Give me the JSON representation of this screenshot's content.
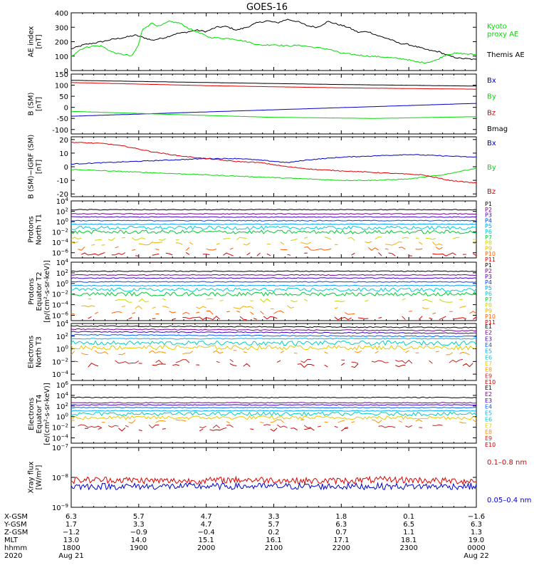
{
  "title": "GOES-16",
  "colors": {
    "black": "#000000",
    "red": "#e00000",
    "green": "#00dd00",
    "blue": "#0000cc",
    "P": [
      "#000000",
      "#7a0090",
      "#4000c0",
      "#0040ff",
      "#00a0ff",
      "#00d0d0",
      "#00cc33",
      "#c8d800",
      "#f0b000",
      "#ff6000",
      "#dd0000"
    ],
    "E": [
      "#000000",
      "#7a0090",
      "#4000c0",
      "#0060ff",
      "#00b0ff",
      "#00d0c0",
      "#e8c800",
      "#ff9000",
      "#cc2020",
      "#cc0000"
    ]
  },
  "chart_data": [
    {
      "id": "ae",
      "type": "line",
      "ylabel": [
        "AE index",
        "[nT]"
      ],
      "ylim": [
        0,
        400
      ],
      "yticks": [
        "400",
        "300",
        "200",
        "100",
        "0"
      ],
      "ytick_values": [
        400,
        300,
        200,
        100,
        0
      ],
      "series": [
        {
          "name": "Themis AE",
          "color": "#000000",
          "x": [
            0,
            0.2,
            0.4,
            0.6,
            0.8,
            0.95,
            1.1,
            1.2,
            1.4,
            1.55,
            1.7,
            1.85,
            2.0,
            2.15,
            2.3,
            2.45,
            2.6,
            2.75,
            2.9,
            3.05,
            3.2,
            3.35,
            3.5,
            3.65,
            3.8,
            3.95,
            4.1,
            4.25,
            4.4,
            4.55,
            4.7,
            4.85,
            5.0,
            5.15,
            5.3,
            5.45,
            5.6,
            5.75,
            5.9,
            6.0
          ],
          "values": [
            150,
            180,
            195,
            215,
            230,
            245,
            225,
            210,
            230,
            255,
            265,
            280,
            270,
            300,
            305,
            280,
            300,
            330,
            345,
            330,
            355,
            340,
            310,
            300,
            340,
            320,
            300,
            265,
            270,
            240,
            220,
            190,
            180,
            160,
            140,
            130,
            100,
            85,
            80,
            75
          ]
        },
        {
          "name": "Kyoto proxy AE",
          "color": "#00dd00",
          "x": [
            0,
            0.15,
            0.3,
            0.45,
            0.6,
            0.7,
            0.8,
            0.9,
            1.0,
            1.05,
            1.1,
            1.2,
            1.3,
            1.45,
            1.6,
            1.75,
            1.9,
            2.05,
            2.2,
            2.4,
            2.6,
            2.8,
            3.0,
            3.2,
            3.4,
            3.6,
            3.8,
            4.0,
            4.2,
            4.4,
            4.6,
            4.8,
            4.95,
            5.1,
            5.25,
            5.4,
            5.55,
            5.7,
            5.85,
            6.0
          ],
          "values": [
            100,
            150,
            170,
            170,
            130,
            115,
            110,
            100,
            180,
            280,
            300,
            330,
            305,
            340,
            330,
            290,
            260,
            230,
            225,
            220,
            200,
            175,
            180,
            170,
            175,
            160,
            150,
            120,
            110,
            100,
            95,
            85,
            80,
            60,
            55,
            70,
            110,
            120,
            115,
            110
          ]
        }
      ],
      "legend": [
        {
          "text": "Kyoto",
          "color": "#00dd00"
        },
        {
          "text": "proxy AE",
          "color": "#00dd00"
        },
        {
          "text": "Themis AE",
          "color": "#000000"
        }
      ]
    },
    {
      "id": "bsm",
      "type": "line",
      "ylabel": [
        "B (SM)",
        "[nT]"
      ],
      "ylim": [
        -120,
        150
      ],
      "yticks": [
        "150",
        "100",
        "50",
        "0",
        "-50",
        "-100"
      ],
      "ytick_values": [
        150,
        100,
        50,
        0,
        -50,
        -100
      ],
      "series": [
        {
          "name": "Bx",
          "color": "#0000cc",
          "x": [
            0,
            6
          ],
          "values": [
            -40,
            18
          ]
        },
        {
          "name": "By",
          "color": "#00dd00",
          "x": [
            0,
            1.5,
            3,
            4.5,
            6
          ],
          "values": [
            -18,
            -32,
            -45,
            -50,
            -42
          ]
        },
        {
          "name": "Bz",
          "color": "#e00000",
          "x": [
            0,
            2,
            4,
            6
          ],
          "values": [
            112,
            98,
            88,
            82
          ]
        },
        {
          "name": "Bmag",
          "color": "#000000",
          "x": [
            0,
            2,
            4,
            6
          ],
          "values": [
            122,
            112,
            103,
            96
          ]
        }
      ],
      "legend": [
        {
          "text": "Bx",
          "color": "#0000cc"
        },
        {
          "text": "By",
          "color": "#00dd00"
        },
        {
          "text": "Bz",
          "color": "#e00000"
        },
        {
          "text": "Bmag",
          "color": "#000000"
        }
      ]
    },
    {
      "id": "bigrf",
      "type": "line",
      "ylabel": [
        "B (SM)−IGRF (SM)",
        "[nT]"
      ],
      "ylim": [
        -22,
        22
      ],
      "yticks": [
        "20",
        "10",
        "0",
        "-10",
        "-20"
      ],
      "ytick_values": [
        20,
        10,
        0,
        -10,
        -20
      ],
      "series": [
        {
          "name": "Bx",
          "color": "#0000cc",
          "x": [
            0,
            0.5,
            1.0,
            1.5,
            2.0,
            2.5,
            3.0,
            3.2,
            3.5,
            4.0,
            4.5,
            5.0,
            5.5,
            6.0
          ],
          "values": [
            2,
            3,
            4,
            5,
            6,
            6,
            4,
            3,
            5,
            7,
            8,
            9,
            8,
            7
          ]
        },
        {
          "name": "By",
          "color": "#00dd00",
          "x": [
            0,
            0.5,
            1.0,
            1.5,
            2.0,
            2.5,
            3.0,
            3.5,
            4.0,
            4.5,
            5.0,
            5.5,
            6.0
          ],
          "values": [
            -2,
            -3,
            -4,
            -5,
            -6,
            -7,
            -8,
            -9,
            -10,
            -10,
            -9,
            -6,
            -1
          ]
        },
        {
          "name": "Bz",
          "color": "#e00000",
          "x": [
            0,
            0.5,
            0.8,
            1.2,
            1.6,
            2.0,
            2.4,
            2.8,
            3.2,
            3.6,
            4.0,
            4.4,
            4.8,
            5.2,
            5.6,
            6.0
          ],
          "values": [
            18,
            17,
            15,
            11,
            8,
            6,
            4,
            3,
            0,
            -2,
            -3,
            -4,
            -5,
            -6,
            -10,
            -12
          ]
        }
      ],
      "legend": [
        {
          "text": "Bx",
          "color": "#0000cc"
        },
        {
          "text": "By",
          "color": "#00dd00"
        },
        {
          "text": "Bz",
          "color": "#e00000"
        }
      ]
    },
    {
      "id": "pnorth",
      "type": "line",
      "log": true,
      "ylabel": [
        "Protons",
        "North T1"
      ],
      "ylim_exp": [
        -7,
        4
      ],
      "ytick_exps": [
        4,
        2,
        0,
        -2,
        -4,
        -6
      ],
      "series_levels": [
        2.3,
        1.5,
        0.9,
        0.2,
        -0.5,
        -1.2,
        -2.0,
        -3.3,
        -4.2,
        -5.2,
        -6.3
      ],
      "legend": [
        "P1",
        "P2",
        "P3",
        "P4",
        "P5",
        "P6",
        "P7",
        "P8",
        "P9",
        "P10",
        "P11"
      ]
    },
    {
      "id": "pequator",
      "type": "line",
      "log": true,
      "ylabel": [
        "Protons",
        "Equator T2",
        "[p/(cm²-s-sr-keV)]"
      ],
      "ylim_exp": [
        -7,
        4
      ],
      "ytick_exps": [
        4,
        2,
        0,
        -2,
        -4,
        -6
      ],
      "series_levels": [
        2.3,
        1.6,
        1.0,
        0.3,
        -0.4,
        -1.2,
        -2.0,
        -3.2,
        -4.5,
        -5.5,
        -6.5
      ],
      "legend": [
        "P1",
        "P2",
        "P3",
        "P4",
        "P5",
        "P6",
        "P7",
        "P8",
        "P9",
        "P10",
        "P11"
      ]
    },
    {
      "id": "enorth",
      "type": "line",
      "log": true,
      "ylabel": [
        "Electrons",
        "North T3"
      ],
      "ylim_exp": [
        -5,
        4
      ],
      "ytick_exps": [
        4,
        2,
        0,
        -2,
        -4
      ],
      "series_levels": [
        3.6,
        3.1,
        2.7,
        2.2,
        1.6,
        0.9,
        0.2,
        -0.6,
        -2.0,
        -2.6
      ],
      "legend": [
        "E1",
        "E2",
        "E3",
        "E4",
        "E5",
        "E6",
        "E7",
        "E8",
        "E9",
        "E10"
      ]
    },
    {
      "id": "eequator",
      "type": "line",
      "log": true,
      "ylabel": [
        "Electrons",
        "Equator T4",
        "[e/(cm²-s-sr-keV)]"
      ],
      "ylim_exp": [
        -5,
        6
      ],
      "ytick_exps": [
        6,
        4,
        2,
        0,
        -2,
        -4
      ],
      "series_levels": [
        3.6,
        2.6,
        2.2,
        1.7,
        1.1,
        0.5,
        -0.2,
        -0.9,
        -1.8,
        -2.4
      ],
      "legend": [
        "E1",
        "E2",
        "E3",
        "E4",
        "E5",
        "E6",
        "E7",
        "E8",
        "E9",
        "E10"
      ]
    },
    {
      "id": "xray",
      "type": "line",
      "log": true,
      "ylabel": [
        "Xray flux",
        "[W/m²]"
      ],
      "ylim_exp": [
        -9,
        -7
      ],
      "ytick_exps": [
        -7,
        -8,
        -9
      ],
      "series": [
        {
          "name": "0.1–0.8 nm",
          "color": "#e00000",
          "level": -8.1
        },
        {
          "name": "0.05–0.4 nm",
          "color": "#0000cc",
          "level": -8.3
        }
      ],
      "legend": [
        {
          "text": "0.1–0.8 nm",
          "color": "#e00000"
        },
        {
          "text": "0.05–0.4 nm",
          "color": "#0000cc"
        }
      ]
    }
  ],
  "xaxis": {
    "range_hours": [
      0,
      6
    ],
    "row_labels": [
      "X-GSM",
      "Y-GSM",
      "Z-GSM",
      "MLT",
      "hhmm",
      "2020"
    ],
    "columns": [
      {
        "values": [
          "6.3",
          "1.7",
          "−1.2",
          "13.0",
          "1800",
          "Aug 21"
        ]
      },
      {
        "values": [
          "5.7",
          "3.3",
          "−0.9",
          "14.0",
          "1900",
          ""
        ]
      },
      {
        "values": [
          "4.7",
          "4.7",
          "−0.4",
          "15.1",
          "2000",
          ""
        ]
      },
      {
        "values": [
          "3.3",
          "5.7",
          "0.2",
          "16.1",
          "2100",
          ""
        ]
      },
      {
        "values": [
          "1.8",
          "6.3",
          "0.7",
          "17.1",
          "2200",
          ""
        ]
      },
      {
        "values": [
          "0.1",
          "6.5",
          "1.1",
          "18.1",
          "2300",
          ""
        ]
      },
      {
        "values": [
          "−1.6",
          "6.3",
          "1.3",
          "19.0",
          "0000",
          "Aug 22"
        ]
      }
    ]
  }
}
